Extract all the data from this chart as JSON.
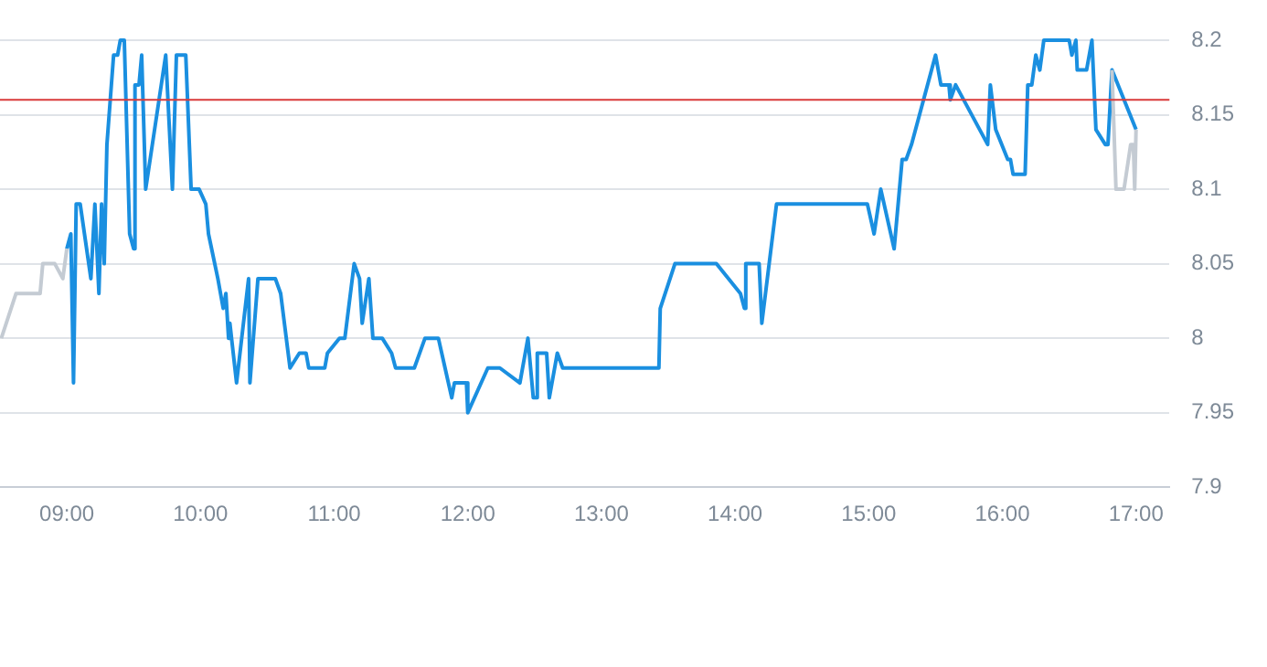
{
  "chart_data": {
    "type": "line",
    "xlim": [
      8.5,
      17.25
    ],
    "xticks": [
      {
        "value": 9,
        "label": "09:00"
      },
      {
        "value": 10,
        "label": "10:00"
      },
      {
        "value": 11,
        "label": "11:00"
      },
      {
        "value": 12,
        "label": "12:00"
      },
      {
        "value": 13,
        "label": "13:00"
      },
      {
        "value": 14,
        "label": "14:00"
      },
      {
        "value": 15,
        "label": "15:00"
      },
      {
        "value": 16,
        "label": "16:00"
      },
      {
        "value": 17,
        "label": "17:00"
      }
    ],
    "ylim": [
      7.9,
      8.2
    ],
    "yticks": [
      7.9,
      7.95,
      8,
      8.05,
      8.1,
      8.15,
      8.2
    ],
    "grid": "y",
    "legend": false,
    "marker": "none",
    "line_style": "solid",
    "series": [
      {
        "color": "#c4cbd3",
        "x": [
          8.51,
          8.62,
          8.8,
          8.82,
          8.91,
          8.97,
          9.0
        ],
        "values": [
          8.0,
          8.03,
          8.03,
          8.05,
          8.05,
          8.04,
          8.06
        ]
      },
      {
        "color": "#c4cbd3",
        "x": [
          16.82,
          16.85,
          16.91,
          16.96,
          16.98,
          16.99,
          17.0
        ],
        "values": [
          8.18,
          8.1,
          8.1,
          8.13,
          8.13,
          8.1,
          8.14
        ]
      },
      {
        "color": "#1a8fe0",
        "x": [
          9.0,
          9.03,
          9.05,
          9.07,
          9.1,
          9.18,
          9.21,
          9.24,
          9.26,
          9.28,
          9.3,
          9.35,
          9.38,
          9.4,
          9.43,
          9.47,
          9.5,
          9.51,
          9.54,
          9.56,
          9.59,
          9.74,
          9.79,
          9.82,
          9.89,
          9.93,
          9.99,
          10.04,
          10.06,
          10.13,
          10.17,
          10.19,
          10.21,
          10.22,
          10.27,
          10.36,
          10.37,
          10.43,
          10.56,
          10.6,
          10.67,
          10.74,
          10.79,
          10.81,
          10.93,
          10.95,
          11.04,
          11.08,
          11.15,
          11.19,
          11.21,
          11.26,
          11.29,
          11.36,
          11.43,
          11.46,
          11.6,
          11.68,
          11.78,
          11.83,
          11.88,
          11.9,
          11.99,
          12.0,
          12.15,
          12.24,
          12.39,
          12.45,
          12.49,
          12.51,
          12.52,
          12.59,
          12.61,
          12.67,
          12.71,
          13.43,
          13.44,
          13.55,
          13.86,
          14.04,
          14.07,
          14.08,
          14.18,
          14.2,
          14.31,
          14.99,
          15.04,
          15.09,
          15.19,
          15.25,
          15.28,
          15.32,
          15.5,
          15.54,
          15.6,
          15.61,
          15.65,
          15.89,
          15.91,
          15.95,
          16.04,
          16.06,
          16.08,
          16.17,
          16.19,
          16.22,
          16.25,
          16.28,
          16.31,
          16.5,
          16.52,
          16.55,
          16.56,
          16.63,
          16.67,
          16.7,
          16.77,
          16.79,
          16.82,
          17.0
        ],
        "values": [
          8.06,
          8.07,
          7.97,
          8.09,
          8.09,
          8.04,
          8.09,
          8.03,
          8.09,
          8.05,
          8.13,
          8.19,
          8.19,
          8.2,
          8.2,
          8.07,
          8.06,
          8.17,
          8.17,
          8.19,
          8.1,
          8.19,
          8.1,
          8.19,
          8.19,
          8.1,
          8.1,
          8.09,
          8.07,
          8.04,
          8.02,
          8.03,
          8.0,
          8.01,
          7.97,
          8.04,
          7.97,
          8.04,
          8.04,
          8.03,
          7.98,
          7.99,
          7.99,
          7.98,
          7.98,
          7.99,
          8.0,
          8.0,
          8.05,
          8.04,
          8.01,
          8.04,
          8.0,
          8.0,
          7.99,
          7.98,
          7.98,
          8.0,
          8.0,
          7.98,
          7.96,
          7.97,
          7.97,
          7.95,
          7.98,
          7.98,
          7.97,
          8.0,
          7.96,
          7.96,
          7.99,
          7.99,
          7.96,
          7.99,
          7.98,
          7.98,
          8.02,
          8.05,
          8.05,
          8.03,
          8.02,
          8.05,
          8.05,
          8.01,
          8.09,
          8.09,
          8.07,
          8.1,
          8.06,
          8.12,
          8.12,
          8.13,
          8.19,
          8.17,
          8.17,
          8.16,
          8.17,
          8.13,
          8.17,
          8.14,
          8.12,
          8.12,
          8.11,
          8.11,
          8.17,
          8.17,
          8.19,
          8.18,
          8.2,
          8.2,
          8.19,
          8.2,
          8.18,
          8.18,
          8.2,
          8.14,
          8.13,
          8.13,
          8.18,
          8.14
        ]
      }
    ],
    "ref_lines": [
      {
        "axis": "y",
        "value": 8.16,
        "color": "#d93a3a"
      }
    ]
  }
}
